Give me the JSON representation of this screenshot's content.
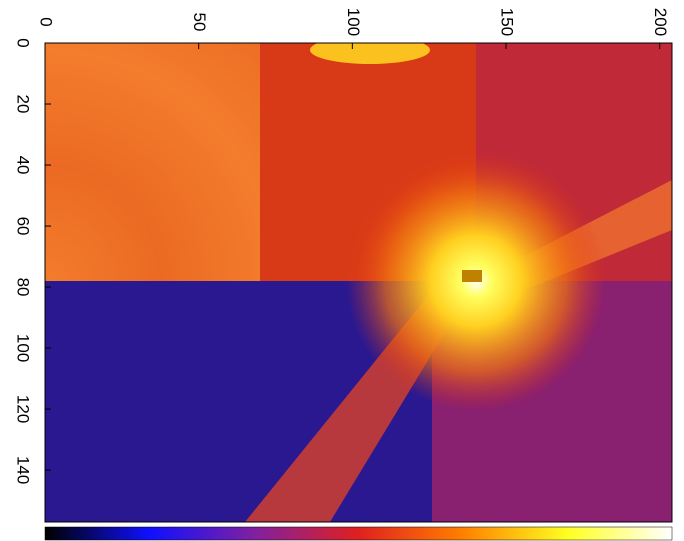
{
  "chart_data": {
    "type": "image",
    "xlim": [
      0,
      204
    ],
    "xticks": [
      0,
      50,
      100,
      150,
      200
    ],
    "ylim": [
      157,
      0
    ],
    "yticks": [
      0,
      20,
      40,
      60,
      80,
      100,
      120,
      140
    ],
    "colormap": [
      "#000000",
      "#1010ff",
      "#8020a0",
      "#e02020",
      "#ff8000",
      "#ffff20",
      "#ffffff"
    ]
  }
}
